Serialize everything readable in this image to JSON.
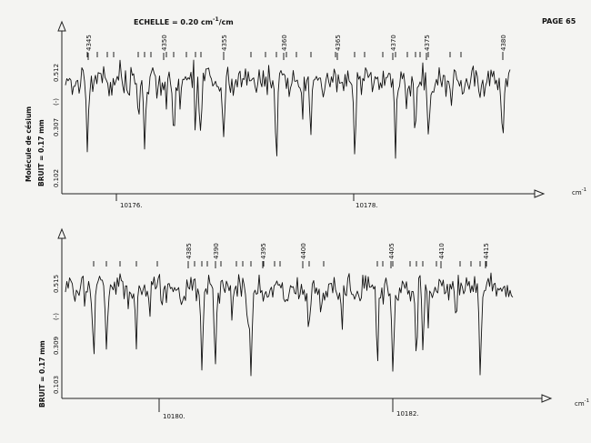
{
  "header": {
    "scale_label": "ECHELLE = 0.20 cm",
    "scale_sup": "-1",
    "scale_suffix": "/cm",
    "page_label": "PAGE 65"
  },
  "chart_data": [
    {
      "type": "line",
      "xlabel": "cm",
      "xlabel_sup": "-1",
      "x_ticks": [
        {
          "value": 10176,
          "label": "10176."
        },
        {
          "value": 10178,
          "label": "10178."
        }
      ],
      "y_ticks": [
        "0.102",
        "0.307",
        "0.512"
      ],
      "y_marker": "(-)",
      "side_label": "Molécule de césium",
      "noise_label": "BRUIT = 0.17 mm",
      "line_numbers": [
        "4345",
        "4350",
        "4355",
        "4360",
        "4365",
        "4370",
        "4375",
        "4380"
      ],
      "grid": false
    },
    {
      "type": "line",
      "xlabel": "cm",
      "xlabel_sup": "-1",
      "x_ticks": [
        {
          "value": 10180,
          "label": "10180."
        },
        {
          "value": 10182,
          "label": "10182."
        }
      ],
      "y_ticks": [
        "0.103",
        "0.309",
        "0.515"
      ],
      "y_marker": "(-)",
      "side_label": "",
      "noise_label": "BRUIT = 0.17 mm",
      "line_numbers": [
        "4385",
        "4390",
        "4395",
        "4400",
        "4405",
        "4410",
        "4415"
      ],
      "grid": false
    }
  ]
}
